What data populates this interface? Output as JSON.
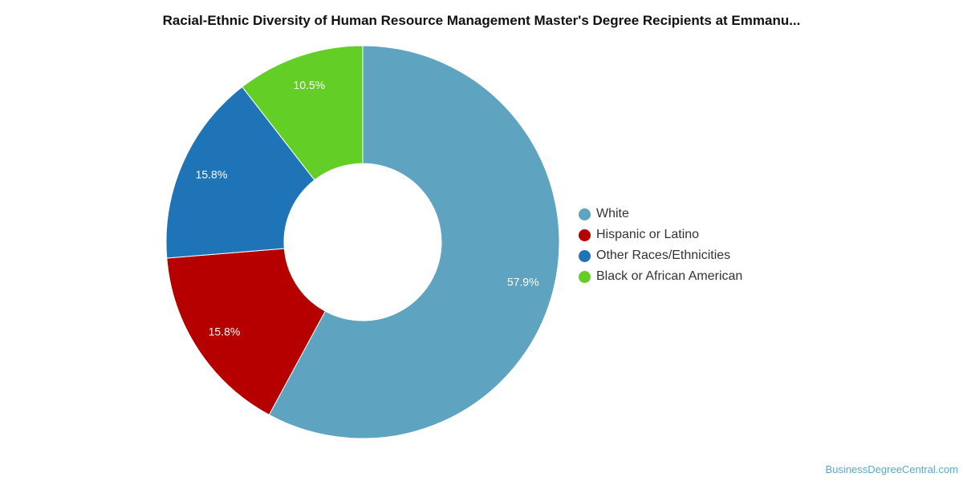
{
  "chart_data": {
    "type": "pie",
    "title": "Racial-Ethnic Diversity of Human Resource Management Master's Degree Recipients at Emmanu...",
    "legend_position": "right",
    "donut": true,
    "slices": [
      {
        "label": "White",
        "value": 57.9,
        "value_label": "57.9%",
        "color": "#5ea3c0"
      },
      {
        "label": "Hispanic or Latino",
        "value": 15.8,
        "value_label": "15.8%",
        "color": "#b60000"
      },
      {
        "label": "Other Races/Ethnicities",
        "value": 15.8,
        "value_label": "15.8%",
        "color": "#1f73b7"
      },
      {
        "label": "Black or African American",
        "value": 10.5,
        "value_label": "10.5%",
        "color": "#63cf26"
      }
    ]
  },
  "footer": {
    "credit": "BusinessDegreeCentral.com"
  }
}
